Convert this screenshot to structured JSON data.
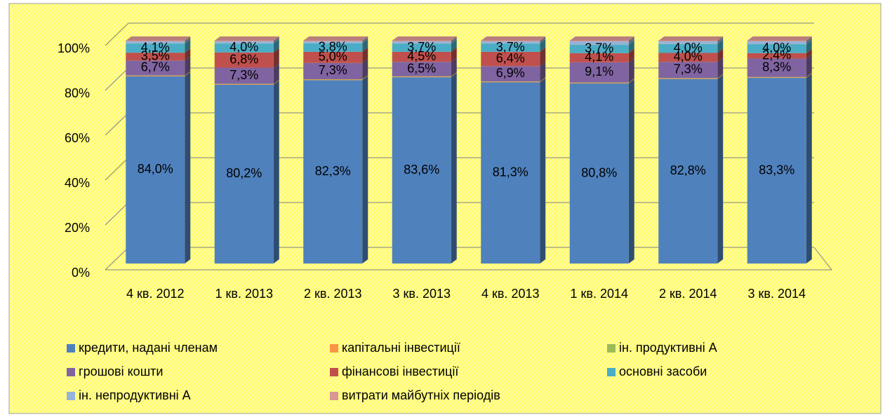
{
  "chart_data": {
    "type": "bar3d_stacked",
    "categories": [
      "4 кв. 2012",
      "1 кв. 2013",
      "2 кв. 2013",
      "3 кв. 2013",
      "4 кв. 2013",
      "1 кв. 2014",
      "2 кв. 2014",
      "3 кв. 2014"
    ],
    "series": [
      {
        "name": "кредити, надані членам",
        "color": "#4f81bd",
        "values": [
          84.0,
          80.2,
          82.3,
          83.6,
          81.3,
          80.8,
          82.8,
          83.3
        ],
        "value_labels": [
          "84,0%",
          "80,2%",
          "82,3%",
          "83,6%",
          "81,3%",
          "80,8%",
          "82,8%",
          "83,3%"
        ]
      },
      {
        "name": "капітальні інвестиції",
        "color": "#f79646",
        "values": [
          0.3,
          0.3,
          0.3,
          0.3,
          0.3,
          0.3,
          0.3,
          0.3
        ]
      },
      {
        "name": "ін. продуктивні А",
        "color": "#9bbb59",
        "values": [
          0.1,
          0.1,
          0.1,
          0.1,
          0.1,
          0.1,
          0.1,
          0.1
        ]
      },
      {
        "name": "грошові кошти",
        "color": "#8064a2",
        "values": [
          6.7,
          7.3,
          7.3,
          6.5,
          6.9,
          9.1,
          7.3,
          8.3
        ],
        "value_labels": [
          "6,7%",
          "7,3%",
          "7,3%",
          "6,5%",
          "6,9%",
          "9,1%",
          "7,3%",
          "8,3%"
        ]
      },
      {
        "name": "фінансові інвестиції",
        "color": "#c0504d",
        "values": [
          3.5,
          6.8,
          5.0,
          4.5,
          6.4,
          4.1,
          4.0,
          2.4
        ],
        "value_labels": [
          "3,5%",
          "6,8%",
          "5,0%",
          "4,5%",
          "6,4%",
          "4,1%",
          "4,0%",
          "2,4%"
        ]
      },
      {
        "name": "основні засоби",
        "color": "#4bacc6",
        "values": [
          4.1,
          4.0,
          3.8,
          3.7,
          3.7,
          3.7,
          4.0,
          4.0
        ],
        "value_labels": [
          "4,1%",
          "4,0%",
          "3,8%",
          "3,7%",
          "3,7%",
          "3,7%",
          "4,0%",
          "4,0%"
        ]
      },
      {
        "name": "ін. непродуктивні А",
        "color": "#95b3d7",
        "values": [
          1.0,
          1.0,
          0.9,
          1.0,
          1.0,
          1.6,
          1.2,
          1.3
        ]
      },
      {
        "name": "витрати майбутніх періодів",
        "color": "#d99694",
        "values": [
          0.3,
          0.3,
          0.3,
          0.3,
          0.3,
          0.3,
          0.3,
          0.3
        ]
      }
    ],
    "ylim": [
      0,
      100
    ],
    "yticks": [
      {
        "value": 0,
        "label": "0%"
      },
      {
        "value": 20,
        "label": "20%"
      },
      {
        "value": 40,
        "label": "40%"
      },
      {
        "value": 60,
        "label": "60%"
      },
      {
        "value": 80,
        "label": "80%"
      },
      {
        "value": 100,
        "label": "100%"
      }
    ],
    "grid": true
  }
}
